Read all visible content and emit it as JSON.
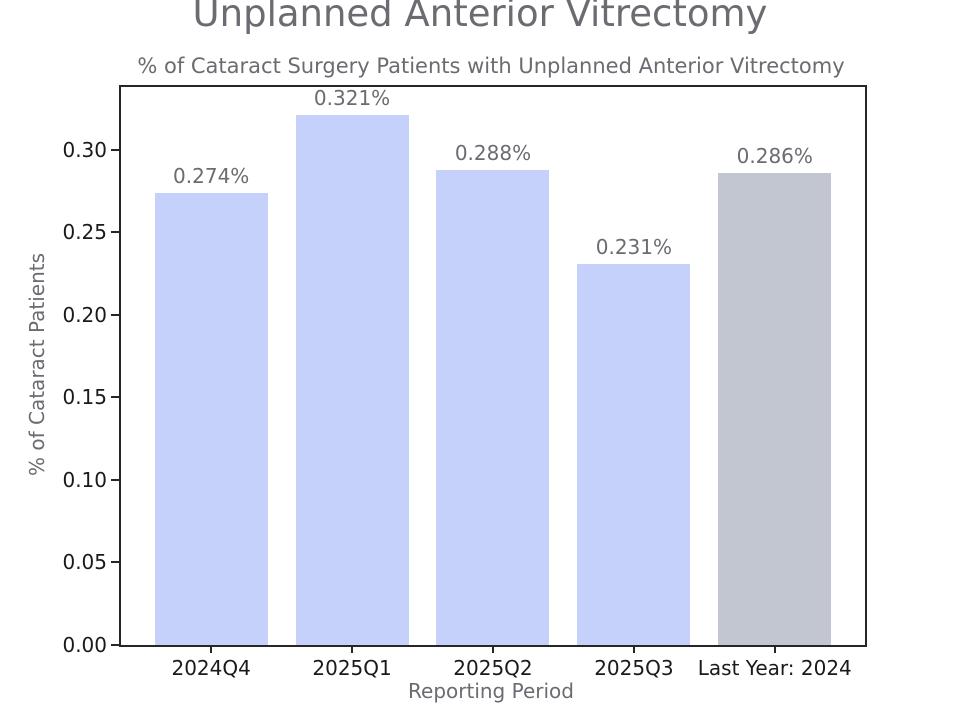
{
  "title": "Unplanned Anterior Vitrectomy",
  "chart_data": {
    "type": "bar",
    "title": "% of Cataract Surgery Patients with Unplanned Anterior Vitrectomy",
    "xlabel": "Reporting Period",
    "ylabel": "% of Cataract Patients",
    "categories": [
      "2024Q4",
      "2025Q1",
      "2025Q2",
      "2025Q3",
      "Last Year: 2024"
    ],
    "values": [
      0.274,
      0.321,
      0.288,
      0.231,
      0.286
    ],
    "value_labels": [
      "0.274%",
      "0.321%",
      "0.288%",
      "0.231%",
      "0.286%"
    ],
    "bar_colors": [
      "#c5d0fb",
      "#c5d0fb",
      "#c5d0fb",
      "#c5d0fb",
      "#c2c6d0"
    ],
    "ylim": [
      0,
      0.338
    ],
    "yticks": [
      "0.00",
      "0.05",
      "0.10",
      "0.15",
      "0.20",
      "0.25",
      "0.30"
    ],
    "ytick_values": [
      0,
      0.05,
      0.1,
      0.15,
      0.2,
      0.25,
      0.3
    ],
    "grid": false,
    "legend": "none",
    "colors": {
      "bar_blue": "#c5d0fb",
      "bar_gray": "#c2c6d0",
      "text_gray": "#6b6b72",
      "tick_text": "#1a1a1a",
      "frame": "#262626",
      "background": "#ffffff"
    }
  }
}
